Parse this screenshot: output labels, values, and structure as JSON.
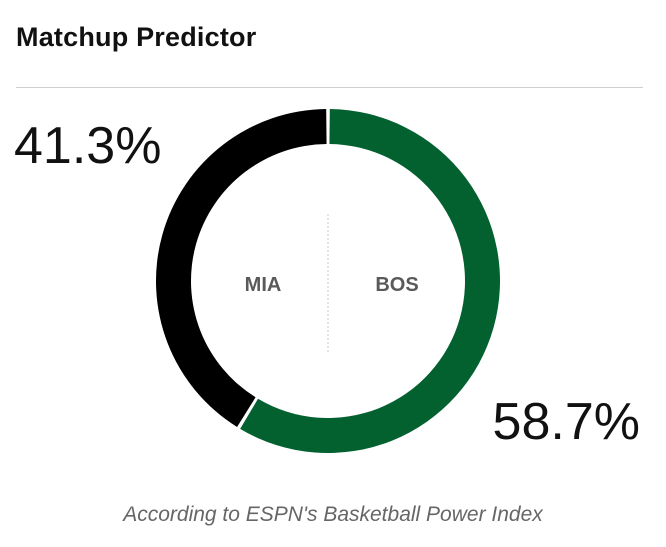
{
  "header": {
    "title": "Matchup Predictor"
  },
  "teams": {
    "away": {
      "abbr": "MIA",
      "pct_label": "41.3%"
    },
    "home": {
      "abbr": "BOS",
      "pct_label": "58.7%"
    }
  },
  "colors": {
    "away": "#000000",
    "home": "#02612f"
  },
  "footer": {
    "source_text": "According to ESPN's Basketball Power Index"
  },
  "chart_data": {
    "type": "pie",
    "variant": "donut",
    "title": "Matchup Predictor",
    "categories": [
      "MIA",
      "BOS"
    ],
    "values": [
      41.3,
      58.7
    ],
    "unit": "%",
    "colors": [
      "#000000",
      "#02612f"
    ]
  }
}
